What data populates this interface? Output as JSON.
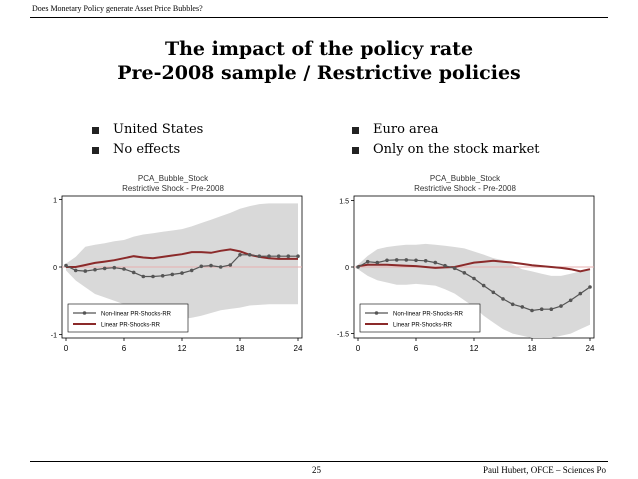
{
  "header": {
    "text": "Does Monetary Policy generate Asset Price Bubbles?"
  },
  "title": {
    "line1": "The impact of the policy rate",
    "line2": "Pre-2008 sample / Restrictive policies"
  },
  "left_bullets": [
    "United States",
    "No effects"
  ],
  "right_bullets": [
    "Euro area",
    "Only on the stock market"
  ],
  "footer": {
    "page": "25",
    "author": "Paul Hubert, OFCE – Sciences Po"
  },
  "colors": {
    "band": "#d9d9d9",
    "nonlinear": "#555555",
    "linear": "#8b2a2a",
    "zero": "#e7b0b0"
  },
  "chart_data": [
    {
      "type": "line",
      "title": "PCA_Bubble_Stock",
      "subtitle": "Restrictive Shock - Pre-2008",
      "x": [
        0,
        1,
        2,
        3,
        4,
        5,
        6,
        7,
        8,
        9,
        10,
        11,
        12,
        13,
        14,
        15,
        16,
        17,
        18,
        19,
        20,
        21,
        22,
        23,
        24
      ],
      "xticks": [
        "0",
        "6",
        "12",
        "18",
        "24"
      ],
      "yticks": [
        "-1",
        "0",
        "1"
      ],
      "ylim": [
        -1.05,
        1.05
      ],
      "series": [
        {
          "name": "Non-linear PR-Shocks-RR",
          "values": [
            0.02,
            -0.05,
            -0.06,
            -0.04,
            -0.02,
            -0.01,
            -0.03,
            -0.08,
            -0.14,
            -0.14,
            -0.13,
            -0.11,
            -0.09,
            -0.05,
            0.01,
            0.02,
            0.0,
            0.03,
            0.18,
            0.18,
            0.16,
            0.16,
            0.16,
            0.16,
            0.16
          ]
        },
        {
          "name": "Linear PR-Shocks-RR",
          "values": [
            0.0,
            0.0,
            0.03,
            0.06,
            0.08,
            0.1,
            0.13,
            0.16,
            0.14,
            0.13,
            0.15,
            0.17,
            0.19,
            0.22,
            0.22,
            0.21,
            0.24,
            0.26,
            0.23,
            0.18,
            0.15,
            0.13,
            0.12,
            0.12,
            0.12
          ]
        }
      ],
      "band_upper": [
        0.05,
        0.15,
        0.3,
        0.33,
        0.35,
        0.38,
        0.4,
        0.45,
        0.48,
        0.5,
        0.52,
        0.54,
        0.56,
        0.6,
        0.65,
        0.7,
        0.75,
        0.8,
        0.86,
        0.9,
        0.93,
        0.94,
        0.94,
        0.94,
        0.94
      ],
      "band_lower": [
        -0.05,
        -0.2,
        -0.3,
        -0.4,
        -0.45,
        -0.5,
        -0.55,
        -0.6,
        -0.65,
        -0.7,
        -0.73,
        -0.75,
        -0.77,
        -0.75,
        -0.72,
        -0.68,
        -0.64,
        -0.62,
        -0.6,
        -0.57,
        -0.56,
        -0.55,
        -0.55,
        -0.55,
        -0.55
      ]
    },
    {
      "type": "line",
      "title": "PCA_Bubble_Stock",
      "subtitle": "Restrictive Shock - Pre-2008",
      "x": [
        0,
        1,
        2,
        3,
        4,
        5,
        6,
        7,
        8,
        9,
        10,
        11,
        12,
        13,
        14,
        15,
        16,
        17,
        18,
        19,
        20,
        21,
        22,
        23,
        24
      ],
      "xticks": [
        "0",
        "6",
        "12",
        "18",
        "24"
      ],
      "yticks": [
        "-1.5",
        "0",
        "1.5"
      ],
      "ylim": [
        -1.6,
        1.6
      ],
      "series": [
        {
          "name": "Non-linear PR-Shocks-RR",
          "values": [
            0.0,
            0.12,
            0.1,
            0.15,
            0.16,
            0.16,
            0.15,
            0.14,
            0.1,
            0.03,
            -0.03,
            -0.13,
            -0.26,
            -0.42,
            -0.57,
            -0.72,
            -0.84,
            -0.9,
            -0.98,
            -0.95,
            -0.95,
            -0.88,
            -0.75,
            -0.6,
            -0.45
          ]
        },
        {
          "name": "Linear PR-Shocks-RR",
          "values": [
            0.02,
            0.05,
            0.05,
            0.05,
            0.04,
            0.03,
            0.02,
            0.0,
            -0.02,
            -0.01,
            0.0,
            0.05,
            0.1,
            0.12,
            0.14,
            0.12,
            0.1,
            0.07,
            0.04,
            0.02,
            0.0,
            -0.02,
            -0.05,
            -0.1,
            -0.05
          ]
        }
      ],
      "band_upper": [
        0.05,
        0.25,
        0.4,
        0.45,
        0.48,
        0.5,
        0.5,
        0.52,
        0.5,
        0.48,
        0.45,
        0.42,
        0.35,
        0.28,
        0.2,
        0.15,
        0.05,
        -0.05,
        -0.1,
        -0.15,
        -0.2,
        -0.2,
        -0.15,
        -0.1,
        -0.05
      ],
      "band_lower": [
        -0.05,
        -0.2,
        -0.3,
        -0.35,
        -0.4,
        -0.4,
        -0.38,
        -0.4,
        -0.42,
        -0.5,
        -0.6,
        -0.75,
        -0.9,
        -1.1,
        -1.25,
        -1.4,
        -1.5,
        -1.55,
        -1.6,
        -1.6,
        -1.6,
        -1.55,
        -1.5,
        -1.4,
        -1.3
      ]
    }
  ]
}
